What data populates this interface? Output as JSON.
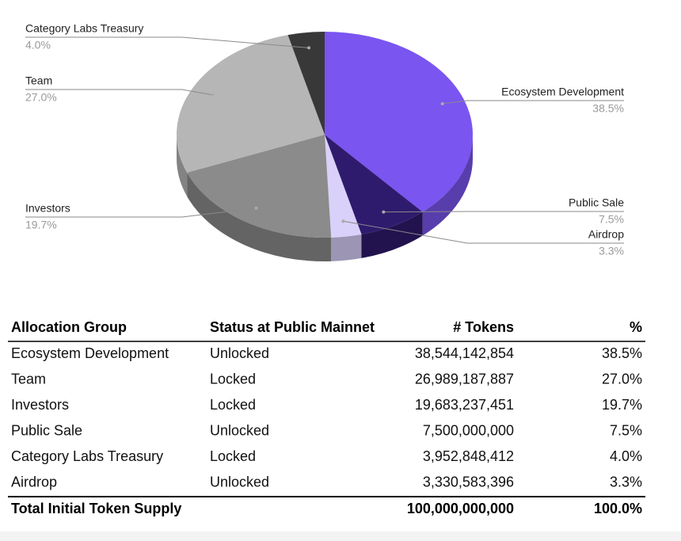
{
  "chart_data": {
    "type": "pie",
    "categories": [
      "Ecosystem Development",
      "Public Sale",
      "Airdrop",
      "Investors",
      "Team",
      "Category Labs Treasury"
    ],
    "values": [
      38.5,
      7.5,
      3.3,
      19.7,
      27.0,
      4.0
    ],
    "value_labels": [
      "38.5%",
      "7.5%",
      "3.3%",
      "19.7%",
      "27.0%",
      "4.0%"
    ],
    "colors": [
      "#7a55f0",
      "#2f1b6e",
      "#d9d1fa",
      "#8b8b8b",
      "#b6b6b6",
      "#383838"
    ]
  },
  "table": {
    "header": [
      "Allocation Group",
      "Status at Public Mainnet",
      "# Tokens",
      "%"
    ],
    "rows": [
      [
        "Ecosystem Development",
        "Unlocked",
        "38,544,142,854",
        "38.5%"
      ],
      [
        "Team",
        "Locked",
        "26,989,187,887",
        "27.0%"
      ],
      [
        "Investors",
        "Locked",
        "19,683,237,451",
        "19.7%"
      ],
      [
        "Public Sale",
        "Unlocked",
        "7,500,000,000",
        "7.5%"
      ],
      [
        "Category Labs Treasury",
        "Locked",
        "3,952,848,412",
        "4.0%"
      ],
      [
        "Airdrop",
        "Unlocked",
        "3,330,583,396",
        "3.3%"
      ]
    ],
    "total": {
      "label": "Total Initial Token Supply",
      "tokens": "100,000,000,000",
      "percent": "100.0%"
    }
  }
}
